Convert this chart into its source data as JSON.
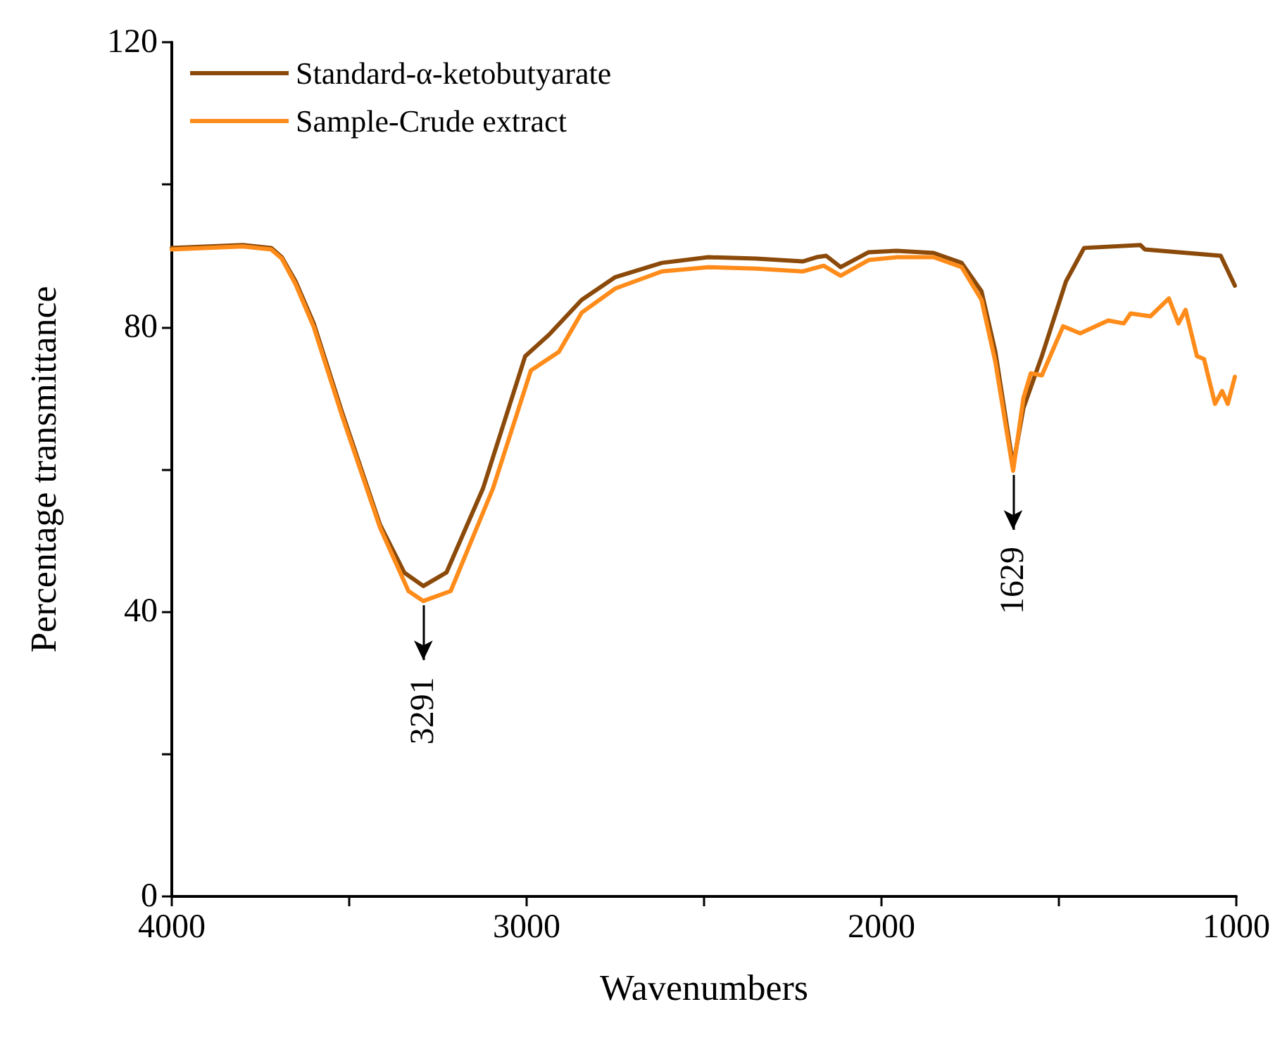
{
  "chart_data": {
    "type": "line",
    "xlabel": "Wavenumbers",
    "ylabel": "Percentage transmittance",
    "xlim": [
      4000,
      1000
    ],
    "xticks": [
      4000,
      {
        "value": 3500,
        "label": null
      },
      3000,
      {
        "value": 2500,
        "label": null
      },
      2000,
      {
        "value": 1500,
        "label": null
      },
      1000
    ],
    "ylim": [
      0,
      120
    ],
    "yticks": [
      0,
      {
        "value": 20,
        "label": null
      },
      40,
      {
        "value": 60,
        "label": null
      },
      80,
      {
        "value": 100,
        "label": null
      },
      120
    ],
    "grid": false,
    "legend": "top left",
    "marker": "none",
    "line_style": "solid",
    "series": [
      {
        "name": "Standard-α-ketobutyarate",
        "color": "#8b4a0a",
        "x": [
          4000,
          3800,
          3720,
          3690,
          3651,
          3600,
          3520,
          3413,
          3345,
          3291,
          3226,
          3123,
          3004,
          2937,
          2845,
          2750,
          2619,
          2488,
          2353,
          2222,
          2183,
          2156,
          2115,
          2036,
          1956,
          1853,
          1774,
          1718,
          1679,
          1629,
          1600,
          1548,
          1480,
          1429,
          1270,
          1258,
          1044,
          1004
        ],
        "values": [
          91.1,
          91.5,
          91.1,
          89.8,
          86.4,
          80.5,
          68.0,
          52.2,
          45.5,
          43.6,
          45.5,
          57.3,
          75.9,
          78.9,
          83.8,
          87.0,
          89.0,
          89.8,
          89.6,
          89.2,
          89.8,
          90.0,
          88.4,
          90.5,
          90.7,
          90.4,
          89.0,
          85.0,
          76.5,
          60.5,
          68.6,
          75.9,
          86.4,
          91.1,
          91.5,
          90.9,
          90.0,
          85.8
        ]
      },
      {
        "name": "Sample-Crude extract",
        "color": "#ff8c1a",
        "x": [
          4000,
          3800,
          3720,
          3690,
          3651,
          3600,
          3520,
          3413,
          3333,
          3291,
          3214,
          3095,
          2988,
          2909,
          2845,
          2750,
          2619,
          2488,
          2353,
          2222,
          2163,
          2115,
          2036,
          1956,
          1853,
          1774,
          1718,
          1679,
          1629,
          1600,
          1579,
          1548,
          1488,
          1440,
          1361,
          1317,
          1298,
          1242,
          1190,
          1163,
          1143,
          1111,
          1091,
          1060,
          1040,
          1024,
          1004
        ],
        "values": [
          90.9,
          91.3,
          90.9,
          89.6,
          86.0,
          80.0,
          67.5,
          51.8,
          42.9,
          41.5,
          42.9,
          57.3,
          73.9,
          76.5,
          82.0,
          85.4,
          87.8,
          88.4,
          88.2,
          87.8,
          88.6,
          87.2,
          89.4,
          89.8,
          89.8,
          88.4,
          83.8,
          75.1,
          59.8,
          70.0,
          73.5,
          73.2,
          80.1,
          79.1,
          80.9,
          80.5,
          81.9,
          81.5,
          84.0,
          80.5,
          82.4,
          75.9,
          75.5,
          69.2,
          71.0,
          69.2,
          73.0
        ]
      }
    ],
    "annotations": [
      {
        "text": "3291",
        "x": 3291,
        "y": 41.5
      },
      {
        "text": "1629",
        "x": 1629,
        "y": 59.8
      }
    ]
  }
}
